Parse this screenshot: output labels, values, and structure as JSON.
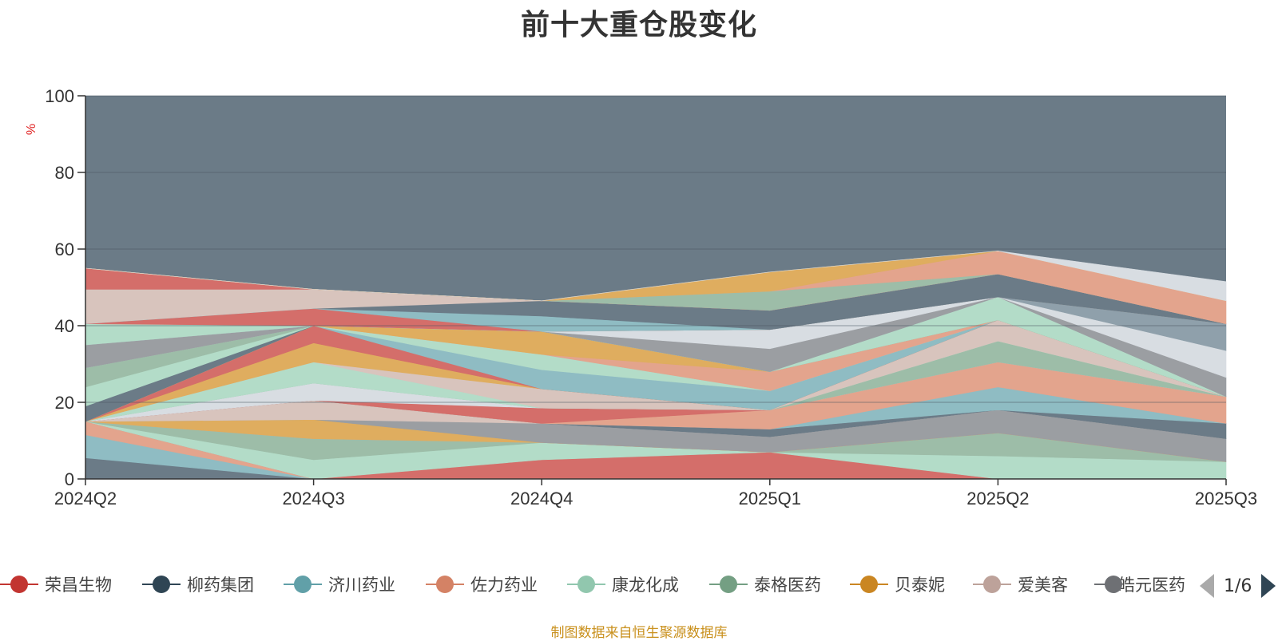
{
  "title": "前十大重仓股变化",
  "source_note": "制图数据来自恒生聚源数据库",
  "legend": {
    "items": [
      {
        "label": "荣昌生物",
        "color": "#c23531"
      },
      {
        "label": "柳药集团",
        "color": "#2f4554"
      },
      {
        "label": "济川药业",
        "color": "#61a0a8"
      },
      {
        "label": "佐力药业",
        "color": "#d48265"
      },
      {
        "label": "康龙化成",
        "color": "#91c7ae"
      },
      {
        "label": "泰格医药",
        "color": "#749f83"
      },
      {
        "label": "贝泰妮",
        "color": "#ca8622"
      },
      {
        "label": "爱美客",
        "color": "#bda29a"
      },
      {
        "label": "皓元医药",
        "color": "#6e7074"
      }
    ],
    "page_text": "1/6"
  },
  "chart_data": {
    "type": "area",
    "stacked": true,
    "title": "前十大重仓股变化",
    "ylabel": "%",
    "ylim": [
      0,
      100
    ],
    "yticks": [
      0,
      20,
      40,
      60,
      80,
      100
    ],
    "categories": [
      "2024Q2",
      "2024Q3",
      "2024Q4",
      "2025Q1",
      "2025Q2",
      "2025Q3"
    ],
    "grid": true,
    "legend_position": "bottom",
    "top_layer": {
      "color": "#6b7b87"
    },
    "layers": [
      {
        "color": "#6b7b87",
        "values": [
          5.5,
          0,
          0,
          0,
          0,
          0
        ]
      },
      {
        "color": "#8fbcc3",
        "values": [
          6,
          0,
          0,
          0,
          0,
          0
        ]
      },
      {
        "color": "#e3a48d",
        "values": [
          3.5,
          0,
          0,
          0,
          0,
          0
        ]
      },
      {
        "color": "#d46e6a",
        "values": [
          0,
          0,
          5,
          7,
          0,
          0
        ]
      },
      {
        "color": "#b3dcc8",
        "values": [
          0,
          5,
          4.5,
          0,
          6,
          4.5
        ]
      },
      {
        "color": "#9dbda8",
        "values": [
          0,
          5.5,
          0,
          0,
          6,
          0
        ]
      },
      {
        "color": "#e3a48d",
        "values": [
          0,
          0,
          0,
          0,
          0,
          0
        ]
      },
      {
        "color": "#dfad5f",
        "values": [
          0,
          5,
          0,
          0,
          0,
          0
        ]
      },
      {
        "color": "#9b9ea2",
        "values": [
          0,
          0,
          5,
          4,
          6,
          6
        ]
      },
      {
        "color": "#d8c4bd",
        "values": [
          0,
          5,
          0,
          0,
          0,
          0
        ]
      },
      {
        "color": "#6b7b87",
        "values": [
          0,
          0,
          0,
          2,
          0,
          4
        ]
      },
      {
        "color": "#8fbcc3",
        "values": [
          0,
          0,
          0,
          0,
          6,
          0
        ]
      },
      {
        "color": "#e3a48d",
        "values": [
          0,
          0,
          0,
          5,
          6.5,
          7
        ]
      },
      {
        "color": "#d46e6a",
        "values": [
          0,
          0,
          4,
          0,
          0,
          0
        ]
      },
      {
        "color": "#d8dde2",
        "values": [
          0,
          4.5,
          0,
          0,
          0,
          0
        ]
      },
      {
        "color": "#9dbda8",
        "values": [
          0,
          0,
          0,
          0,
          5.5,
          0
        ]
      },
      {
        "color": "#b3dcc8",
        "values": [
          0,
          5.5,
          0,
          0,
          0,
          0
        ]
      },
      {
        "color": "#d8c4bd",
        "values": [
          0,
          0,
          5,
          0,
          5.5,
          0
        ]
      },
      {
        "color": "#dfad5f",
        "values": [
          0,
          5,
          0,
          0,
          0,
          0
        ]
      },
      {
        "color": "#d46e6a",
        "values": [
          0,
          4.5,
          0,
          0,
          0,
          0
        ]
      },
      {
        "color": "#8fbcc3",
        "values": [
          0,
          0,
          5,
          5,
          0,
          0
        ]
      },
      {
        "color": "#b3dcc8",
        "values": [
          0,
          0,
          4,
          0,
          0,
          0
        ]
      },
      {
        "color": "#e3a48d",
        "values": [
          0,
          0,
          0,
          5,
          0,
          0
        ]
      },
      {
        "color": "#dfad5f",
        "values": [
          0,
          0,
          6,
          0,
          0,
          0
        ]
      },
      {
        "color": "#6b7b87",
        "values": [
          4,
          0,
          0,
          0,
          0,
          0
        ]
      },
      {
        "color": "#b3dcc8",
        "values": [
          5,
          0,
          0,
          0,
          0,
          0
        ]
      },
      {
        "color": "#9dbda8",
        "values": [
          5,
          0,
          0,
          0,
          0,
          0
        ]
      },
      {
        "color": "#b3dcc8",
        "values": [
          0,
          0,
          0,
          0,
          6,
          0
        ]
      },
      {
        "color": "#9b9ea2",
        "values": [
          6,
          0,
          0,
          6,
          0,
          5
        ]
      },
      {
        "color": "#d8dde2",
        "values": [
          0,
          0,
          0,
          5,
          0,
          7
        ]
      },
      {
        "color": "#8fa0ab",
        "values": [
          0,
          0,
          0,
          0,
          0,
          7
        ]
      },
      {
        "color": "#b3dcc8",
        "values": [
          5.5,
          0,
          0,
          0,
          0,
          0
        ]
      },
      {
        "color": "#d46e6a",
        "values": [
          0,
          4.5,
          0,
          0,
          0,
          0
        ]
      },
      {
        "color": "#8fbcc3",
        "values": [
          0,
          0,
          4,
          0,
          0,
          0
        ]
      },
      {
        "color": "#6b7b87",
        "values": [
          0,
          0,
          4,
          5,
          6,
          0
        ]
      },
      {
        "color": "#d8c4bd",
        "values": [
          9,
          5,
          0,
          0,
          0,
          0
        ]
      },
      {
        "color": "#d46e6a",
        "values": [
          5.5,
          0,
          0,
          0,
          0,
          0
        ]
      },
      {
        "color": "#9dbda8",
        "values": [
          0,
          0,
          0,
          5,
          0,
          0
        ]
      },
      {
        "color": "#e3a48d",
        "values": [
          0,
          0,
          0,
          0,
          6,
          6
        ]
      },
      {
        "color": "#dfad5f",
        "values": [
          0,
          0,
          0,
          5,
          0,
          0
        ]
      },
      {
        "color": "#d8dde2",
        "values": [
          0,
          0,
          0,
          0,
          0,
          5
        ]
      }
    ]
  }
}
